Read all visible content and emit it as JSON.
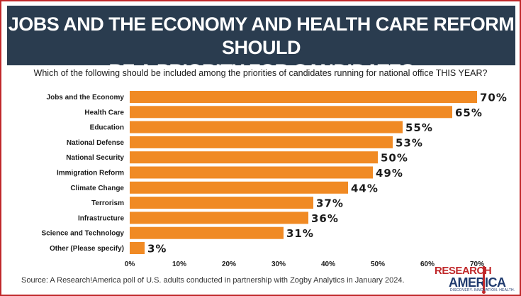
{
  "header": {
    "title_line1": "JOBS AND THE ECONOMY AND HEALTH CARE REFORM SHOULD",
    "title_line2": "BE A PRIORITY FOR CANDIDATES"
  },
  "question": "Which of the following should be included among the priorities of candidates running for national office THIS YEAR?",
  "source": "Source:  A Research!America poll of U.S. adults conducted in partnership with Zogby Analytics in January 2024.",
  "logo": {
    "line1": "RESEARCH",
    "line2": "AMERICA",
    "tagline": "DISCOVERY. INNOVATION. HEALTH."
  },
  "colors": {
    "bar": "#f08a24",
    "banner": "#2a3c4f",
    "border": "#c0282a",
    "text": "#1a1a1a"
  },
  "chart_data": {
    "type": "bar",
    "orientation": "horizontal",
    "categories": [
      "Jobs and the Economy",
      "Health Care",
      "Education",
      "National Defense",
      "National Security",
      "Immigration Reform",
      "Climate Change",
      "Terrorism",
      "Infrastructure",
      "Science and Technology",
      "Other (Please specify)"
    ],
    "values": [
      70,
      65,
      55,
      53,
      50,
      49,
      44,
      37,
      36,
      31,
      3
    ],
    "value_labels": [
      "70%",
      "65%",
      "55%",
      "53%",
      "50%",
      "49%",
      "44%",
      "37%",
      "36%",
      "31%",
      "3%"
    ],
    "x_ticks": [
      "0%",
      "10%",
      "20%",
      "30%",
      "40%",
      "50%",
      "60%",
      "70%"
    ],
    "xlim": [
      0,
      70
    ],
    "grid": false,
    "legend": "none"
  }
}
